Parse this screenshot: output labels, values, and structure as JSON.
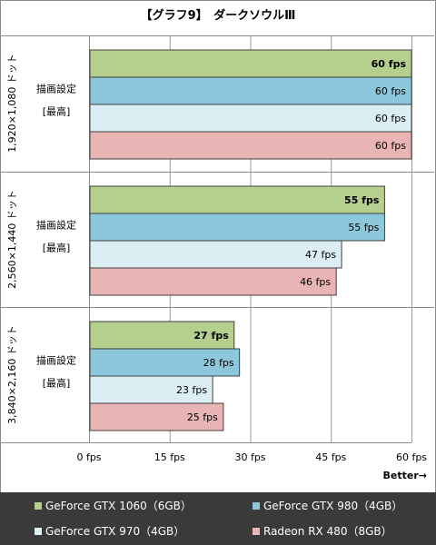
{
  "chart_data": {
    "type": "bar",
    "orientation": "horizontal",
    "title": "【グラフ9】　ダークソウルⅢ",
    "x_axis": {
      "ticks": [
        0,
        15,
        30,
        45,
        60
      ],
      "tick_labels": [
        "0 fps",
        "15 fps",
        "30 fps",
        "45 fps",
        "60 fps"
      ],
      "xlim": [
        0,
        60
      ],
      "grid": true,
      "direction_label": "Better→"
    },
    "groups": [
      {
        "resolution": "1,920×1,080 ドット",
        "setting": "描画設定",
        "preset": "[最高]",
        "values": [
          60,
          60,
          60,
          60
        ],
        "labels": [
          "60 fps",
          "60 fps",
          "60 fps",
          "60 fps"
        ]
      },
      {
        "resolution": "2,560×1,440 ドット",
        "setting": "描画設定",
        "preset": "[最高]",
        "values": [
          55,
          55,
          47,
          46
        ],
        "labels": [
          "55 fps",
          "55 fps",
          "47 fps",
          "46 fps"
        ]
      },
      {
        "resolution": "3,840×2,160 ドット",
        "setting": "描画設定",
        "preset": "[最高]",
        "values": [
          27,
          28,
          23,
          25
        ],
        "labels": [
          "27 fps",
          "28 fps",
          "23 fps",
          "25 fps"
        ]
      }
    ],
    "series": [
      {
        "name": "GeForce GTX 1060（6GB）",
        "color": "#b5cf8f",
        "bold_labels": true
      },
      {
        "name": "GeForce GTX 980（4GB）",
        "color": "#8dc7dc",
        "bold_labels": false
      },
      {
        "name": "GeForce GTX 970（4GB）",
        "color": "#daeef4",
        "bold_labels": false
      },
      {
        "name": "Radeon RX 480（8GB）",
        "color": "#e8b4b4",
        "bold_labels": false
      }
    ],
    "legend_position": "bottom"
  }
}
